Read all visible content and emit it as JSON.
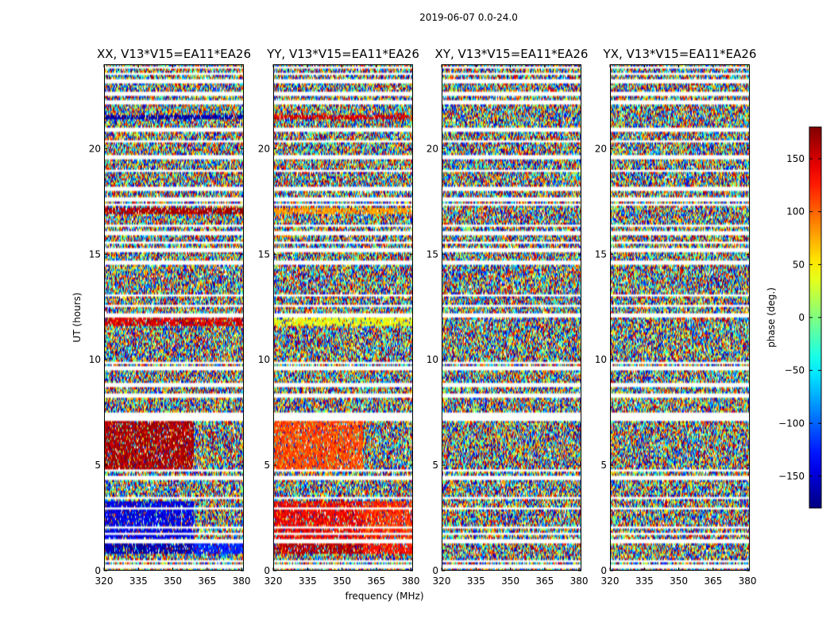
{
  "chart_data": {
    "type": "heatmap",
    "suptitle": "2019-06-07 0.0-24.0",
    "xlabel": "frequency (MHz)",
    "ylabel": "UT (hours)",
    "xlim": [
      320,
      381
    ],
    "ylim": [
      0,
      24
    ],
    "xticks": [
      320,
      335,
      350,
      365,
      380
    ],
    "yticks": [
      0,
      5,
      10,
      15,
      20
    ],
    "panels": [
      {
        "title": "XX, V13*V15=EA11*EA26",
        "regions": [
          {
            "f": [
              320,
              359
            ],
            "t": [
              0.8,
              1.3
            ],
            "phase": -165
          },
          {
            "f": [
              359,
              381
            ],
            "t": [
              0.8,
              1.3
            ],
            "phase": -125
          },
          {
            "f": [
              320,
              359
            ],
            "t": [
              1.5,
              3.3
            ],
            "phase": -145
          },
          {
            "f": [
              320,
              359
            ],
            "t": [
              4.8,
              7.1
            ],
            "phase": 165
          },
          {
            "f": [
              320,
              381
            ],
            "t": [
              11.6,
              12.0
            ],
            "phase": 150
          },
          {
            "f": [
              320,
              381
            ],
            "t": [
              16.9,
              17.2
            ],
            "phase": 165
          },
          {
            "f": [
              320,
              381
            ],
            "t": [
              21.4,
              21.6
            ],
            "phase": -165
          }
        ]
      },
      {
        "title": "YY, V13*V15=EA11*EA26",
        "regions": [
          {
            "f": [
              320,
              359
            ],
            "t": [
              0.8,
              1.3
            ],
            "phase": 160
          },
          {
            "f": [
              359,
              381
            ],
            "t": [
              0.8,
              1.3
            ],
            "phase": 130
          },
          {
            "f": [
              320,
              359
            ],
            "t": [
              1.5,
              3.3
            ],
            "phase": 140
          },
          {
            "f": [
              359,
              381
            ],
            "t": [
              1.5,
              3.3
            ],
            "phase": 120
          },
          {
            "f": [
              320,
              359
            ],
            "t": [
              4.8,
              7.1
            ],
            "phase": 110
          },
          {
            "f": [
              320,
              381
            ],
            "t": [
              11.6,
              12.0
            ],
            "phase": 40
          },
          {
            "f": [
              320,
              381
            ],
            "t": [
              16.9,
              17.2
            ],
            "phase": 80
          },
          {
            "f": [
              320,
              381
            ],
            "t": [
              21.4,
              21.6
            ],
            "phase": 150
          }
        ]
      },
      {
        "title": "XY, V13*V15=EA11*EA26",
        "regions": []
      },
      {
        "title": "YX, V13*V15=EA11*EA26",
        "regions": []
      }
    ],
    "flagged_rows_hours": [
      0.2,
      0.45,
      1.4,
      1.75,
      2.05,
      2.95,
      3.45,
      4.4,
      4.75,
      7.2,
      7.4,
      8.3,
      8.8,
      9.6,
      9.85,
      12.1,
      12.55,
      13.05,
      14.6,
      15.2,
      15.55,
      16.0,
      16.35,
      17.35,
      17.6,
      18.1,
      18.95,
      19.6,
      20.35,
      20.9,
      22.2,
      22.6,
      23.2,
      23.55,
      23.85
    ],
    "colorbar": {
      "label": "phase (deg.)",
      "range": [
        -180,
        180
      ],
      "ticks": [
        -150,
        -100,
        -50,
        0,
        50,
        100,
        150
      ],
      "tick_labels": [
        "−150",
        "−100",
        "−50",
        "0",
        "50",
        "100",
        "150"
      ],
      "colormap": "jet"
    }
  }
}
